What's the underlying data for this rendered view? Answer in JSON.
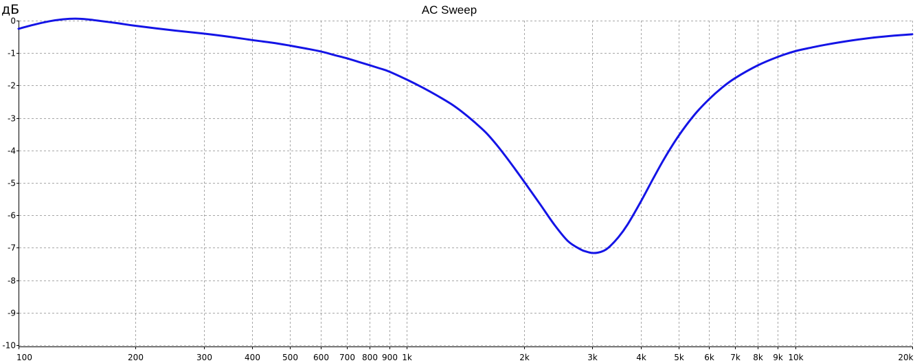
{
  "chart_data": {
    "type": "line",
    "title": "AC Sweep",
    "ylabel": "дБ",
    "xlabel": "",
    "x_scale": "log",
    "xlim": [
      100,
      20000
    ],
    "ylim": [
      -10.2,
      0.2
    ],
    "grid": true,
    "line_color": "#1414e6",
    "x_ticks": [
      {
        "value": 100,
        "label": "100"
      },
      {
        "value": 200,
        "label": "200"
      },
      {
        "value": 300,
        "label": "300"
      },
      {
        "value": 400,
        "label": "400"
      },
      {
        "value": 500,
        "label": "500"
      },
      {
        "value": 600,
        "label": "600"
      },
      {
        "value": 700,
        "label": "700"
      },
      {
        "value": 800,
        "label": "800"
      },
      {
        "value": 900,
        "label": "900"
      },
      {
        "value": 1000,
        "label": "1k"
      },
      {
        "value": 2000,
        "label": "2k"
      },
      {
        "value": 3000,
        "label": "3k"
      },
      {
        "value": 4000,
        "label": "4k"
      },
      {
        "value": 5000,
        "label": "5k"
      },
      {
        "value": 6000,
        "label": "6k"
      },
      {
        "value": 7000,
        "label": "7k"
      },
      {
        "value": 8000,
        "label": "8k"
      },
      {
        "value": 9000,
        "label": "9k"
      },
      {
        "value": 10000,
        "label": "10k"
      },
      {
        "value": 20000,
        "label": "20k"
      }
    ],
    "y_ticks": [
      {
        "value": 0,
        "label": "0"
      },
      {
        "value": -1,
        "label": "-1"
      },
      {
        "value": -2,
        "label": "-2"
      },
      {
        "value": -3,
        "label": "-3"
      },
      {
        "value": -4,
        "label": "-4"
      },
      {
        "value": -5,
        "label": "-5"
      },
      {
        "value": -6,
        "label": "-6"
      },
      {
        "value": -7,
        "label": "-7"
      },
      {
        "value": -8,
        "label": "-8"
      },
      {
        "value": -9,
        "label": "-9"
      },
      {
        "value": -10,
        "label": "-10"
      }
    ],
    "series": [
      {
        "points": [
          [
            100,
            -0.25
          ],
          [
            110,
            -0.12
          ],
          [
            120,
            -0.02
          ],
          [
            130,
            0.04
          ],
          [
            140,
            0.06
          ],
          [
            150,
            0.04
          ],
          [
            160,
            0.0
          ],
          [
            180,
            -0.08
          ],
          [
            200,
            -0.16
          ],
          [
            250,
            -0.3
          ],
          [
            300,
            -0.4
          ],
          [
            350,
            -0.5
          ],
          [
            400,
            -0.6
          ],
          [
            450,
            -0.68
          ],
          [
            500,
            -0.77
          ],
          [
            550,
            -0.86
          ],
          [
            600,
            -0.95
          ],
          [
            650,
            -1.06
          ],
          [
            700,
            -1.16
          ],
          [
            750,
            -1.27
          ],
          [
            800,
            -1.37
          ],
          [
            850,
            -1.47
          ],
          [
            900,
            -1.57
          ],
          [
            1000,
            -1.82
          ],
          [
            1100,
            -2.07
          ],
          [
            1200,
            -2.32
          ],
          [
            1300,
            -2.57
          ],
          [
            1400,
            -2.85
          ],
          [
            1500,
            -3.15
          ],
          [
            1600,
            -3.46
          ],
          [
            1700,
            -3.82
          ],
          [
            1800,
            -4.2
          ],
          [
            1900,
            -4.58
          ],
          [
            2000,
            -4.95
          ],
          [
            2200,
            -5.65
          ],
          [
            2400,
            -6.3
          ],
          [
            2600,
            -6.8
          ],
          [
            2800,
            -7.05
          ],
          [
            2900,
            -7.12
          ],
          [
            3000,
            -7.16
          ],
          [
            3100,
            -7.15
          ],
          [
            3200,
            -7.1
          ],
          [
            3300,
            -7.0
          ],
          [
            3500,
            -6.68
          ],
          [
            3700,
            -6.28
          ],
          [
            4000,
            -5.58
          ],
          [
            4300,
            -4.88
          ],
          [
            4600,
            -4.25
          ],
          [
            5000,
            -3.56
          ],
          [
            5500,
            -2.9
          ],
          [
            6000,
            -2.42
          ],
          [
            6500,
            -2.05
          ],
          [
            7000,
            -1.77
          ],
          [
            8000,
            -1.38
          ],
          [
            9000,
            -1.12
          ],
          [
            10000,
            -0.94
          ],
          [
            11000,
            -0.83
          ],
          [
            12000,
            -0.74
          ],
          [
            14000,
            -0.61
          ],
          [
            16000,
            -0.52
          ],
          [
            18000,
            -0.46
          ],
          [
            20000,
            -0.42
          ]
        ]
      }
    ]
  }
}
